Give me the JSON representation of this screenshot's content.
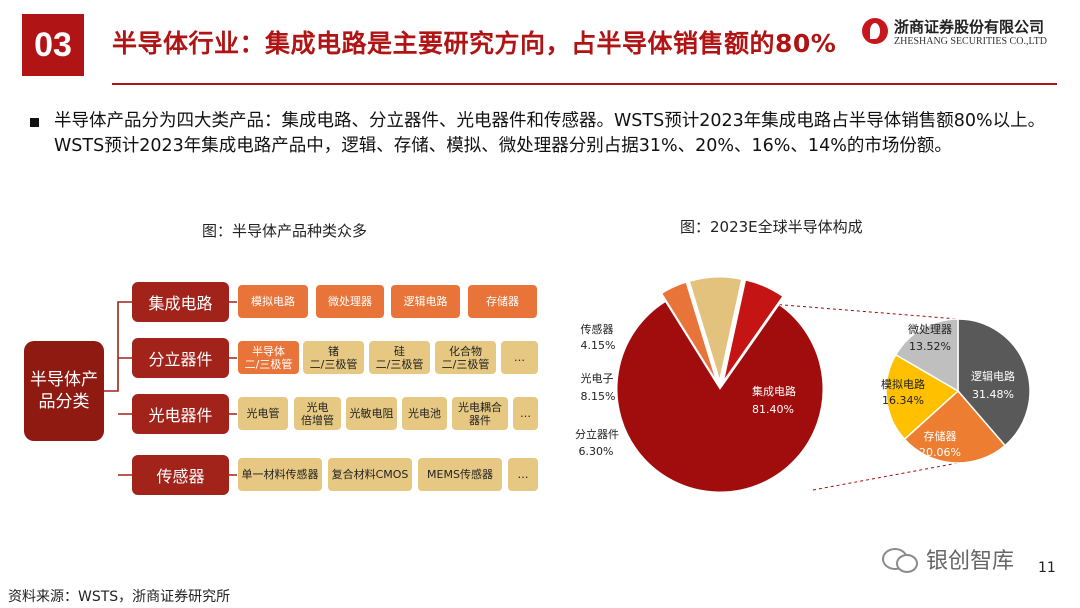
{
  "header": {
    "section_number": "03",
    "title": "半导体行业：集成电路是主要研究方向，占半导体销售额的80%",
    "logo_cn": "浙商证券股份有限公司",
    "logo_en": "ZHESHANG SECURITIES CO.,LTD"
  },
  "bullet": {
    "text": "半导体产品分为四大类产品：集成电路、分立器件、光电器件和传感器。WSTS预计2023年集成电路占半导体销售额80%以上。WSTS预计2023年集成电路产品中，逻辑、存储、模拟、微处理器分别占据31%、20%、16%、14%的市场份额。"
  },
  "diagram": {
    "caption": "图：半导体产品种类众多",
    "root": "半导体产\n品分类",
    "categories": [
      {
        "label": "集成电路",
        "items": [
          "模拟电路",
          "微处理器",
          "逻辑电路",
          "存储器"
        ]
      },
      {
        "label": "分立器件",
        "items": [
          "半导体\n二/三极管",
          "锗\n二/三极管",
          "硅\n二/三极管",
          "化合物\n二/三极管",
          "…"
        ]
      },
      {
        "label": "光电器件",
        "items": [
          "光电管",
          "光电\n倍增管",
          "光敏电阻",
          "光电池",
          "光电耦合\n器件",
          "…"
        ]
      },
      {
        "label": "传感器",
        "items": [
          "单一材料传感器",
          "复合材料CMOS",
          "MEMS传感器",
          "…"
        ]
      }
    ],
    "colors": {
      "root": "#8f1a12",
      "category": "#a1231a",
      "item": "#e6c882",
      "item_highlight": "#e8743a"
    }
  },
  "chart_data": [
    {
      "type": "pie",
      "title": "图：2023E全球半导体构成",
      "labels": [
        "集成电路",
        "传感器",
        "光电子",
        "分立器件"
      ],
      "values": [
        81.4,
        4.15,
        8.15,
        6.3
      ],
      "value_labels": [
        "81.40%",
        "4.15%",
        "8.15%",
        "6.30%"
      ],
      "colors": [
        "#a10d0d",
        "#e8743a",
        "#e2c27c",
        "#c41414"
      ]
    },
    {
      "type": "pie",
      "title": "",
      "labels": [
        "逻辑电路",
        "存储器",
        "模拟电路",
        "微处理器"
      ],
      "values": [
        31.48,
        20.06,
        16.34,
        13.52
      ],
      "value_labels": [
        "31.48%",
        "20.06%",
        "16.34%",
        "13.52%"
      ],
      "colors": [
        "#595959",
        "#ed7d31",
        "#ffc000",
        "#bfbfbf"
      ]
    }
  ],
  "footer": {
    "source": "资料来源：WSTS，浙商证券研究所",
    "page_number": "11",
    "watermark": "银创智库"
  }
}
